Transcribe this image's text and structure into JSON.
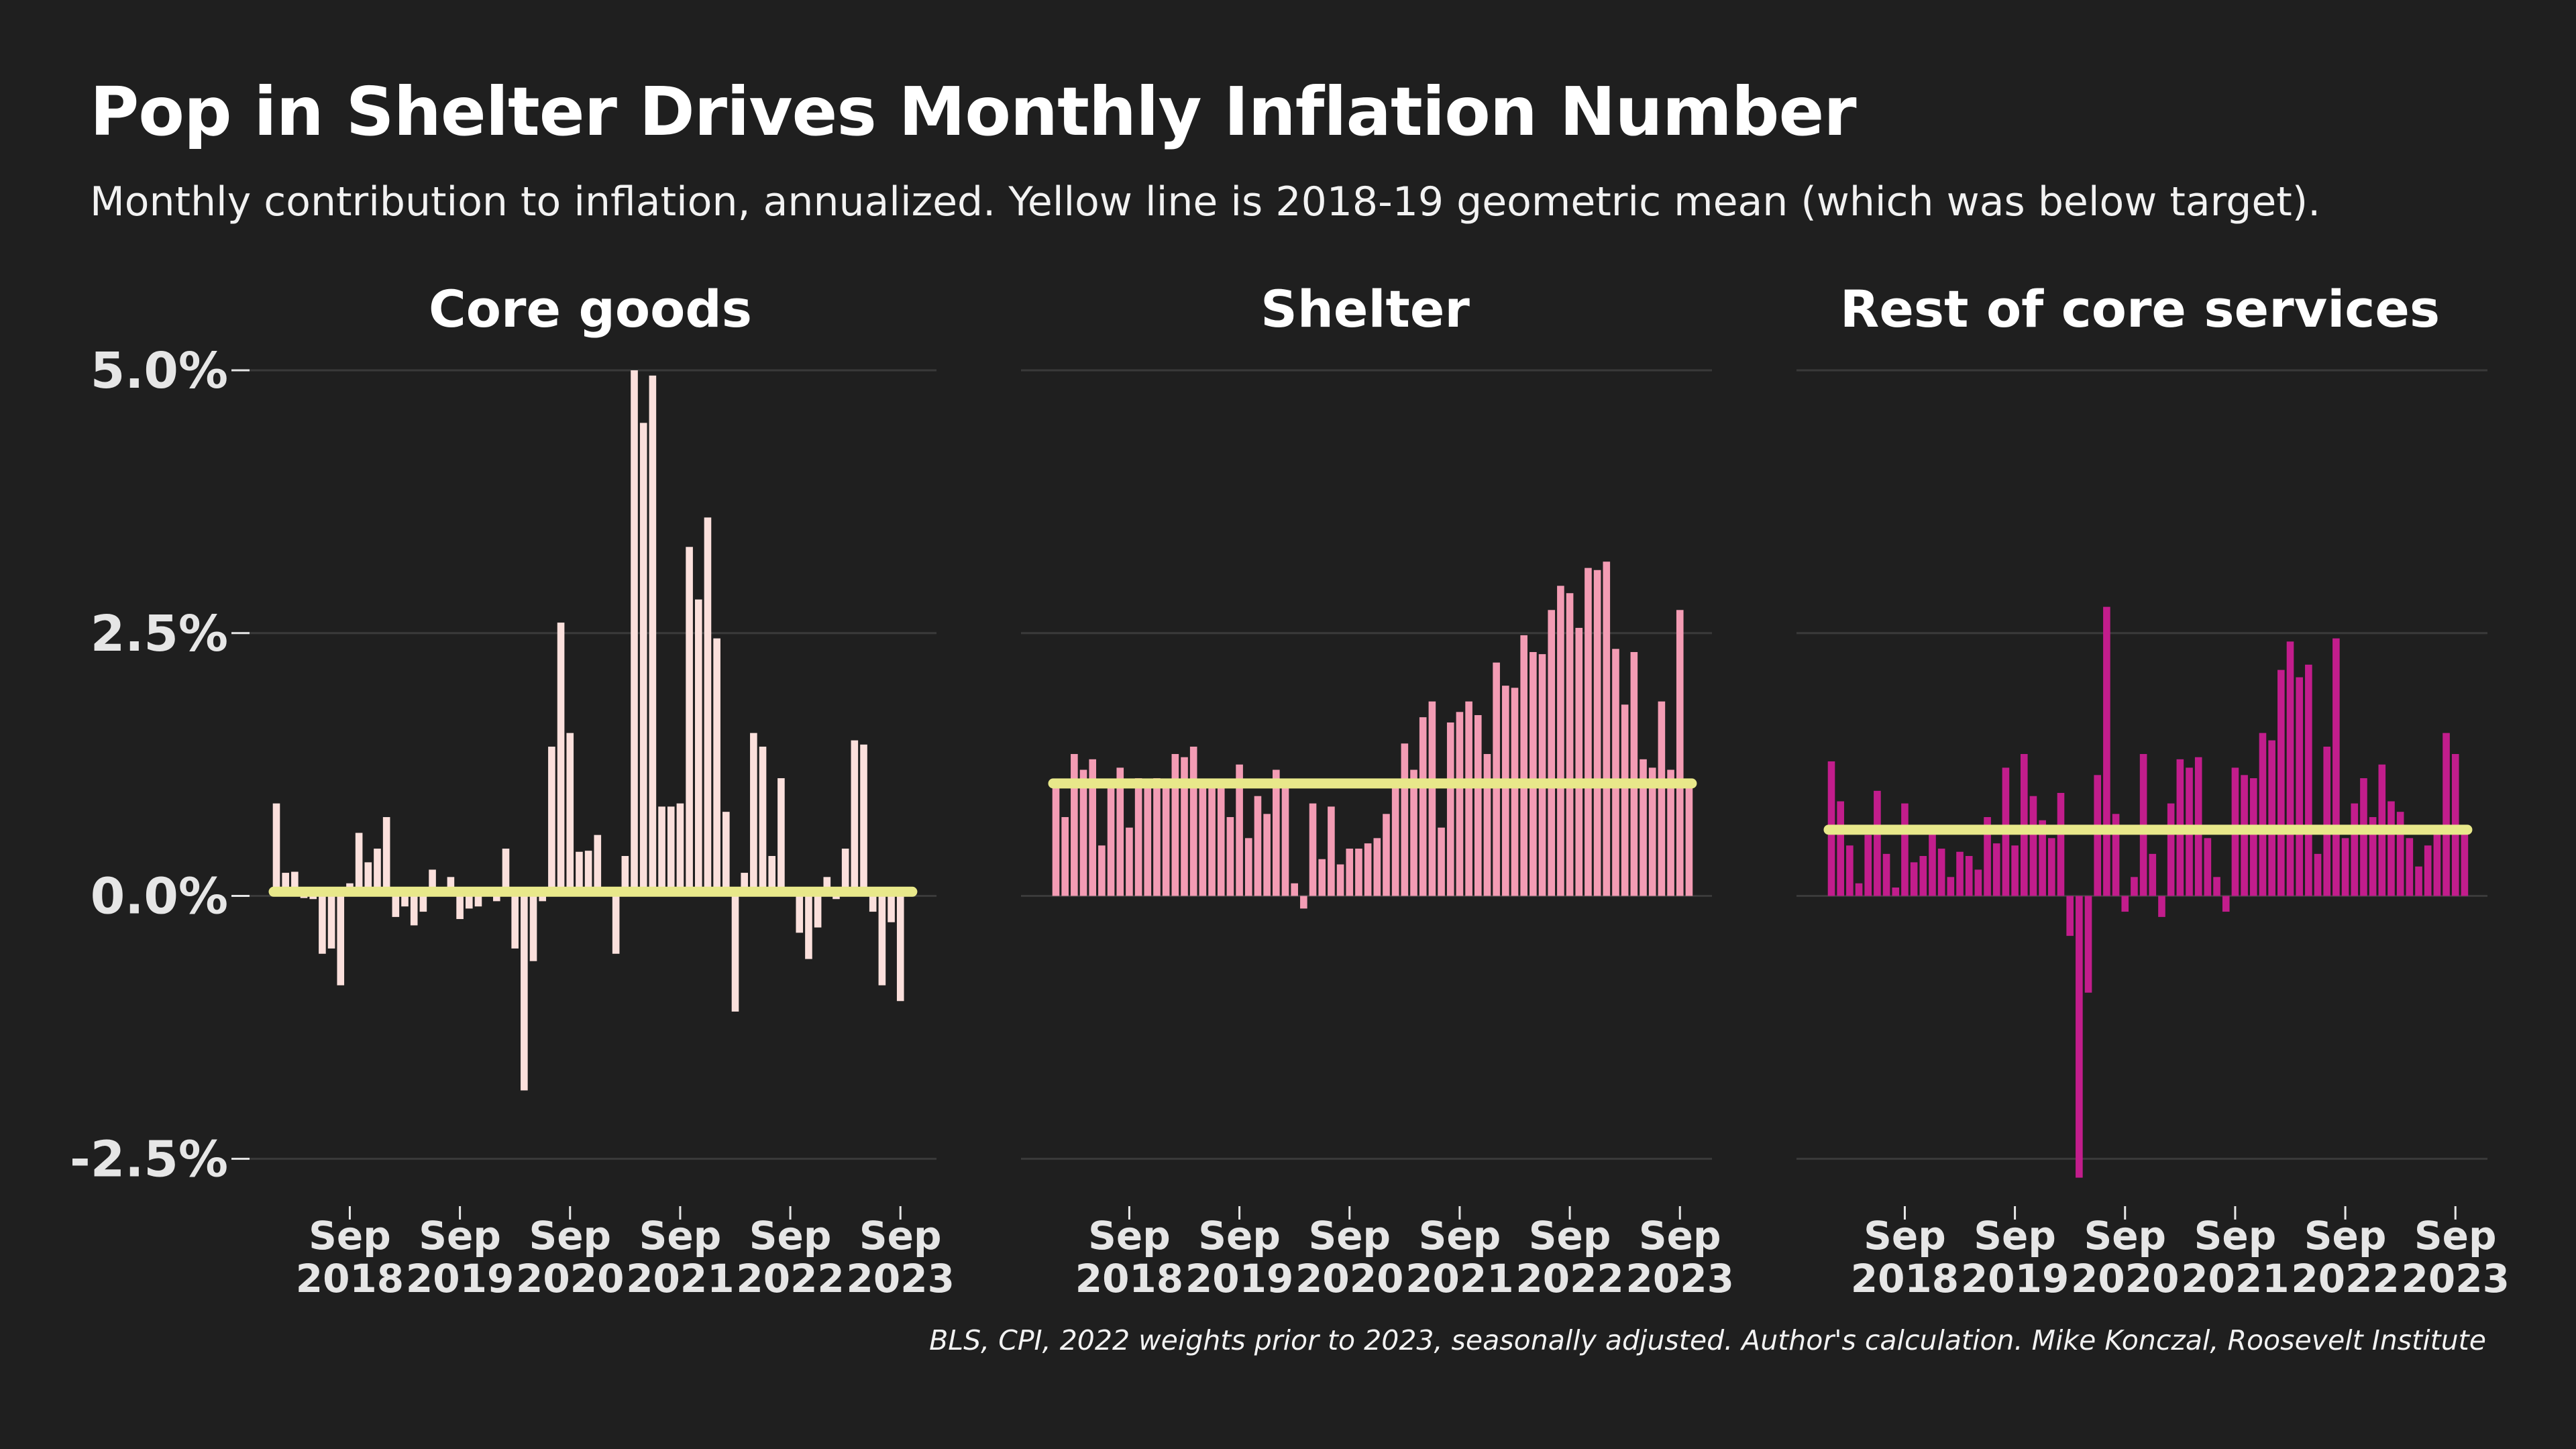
{
  "title": "Pop in Shelter Drives Monthly Inflation Number",
  "subtitle": "Monthly contribution to inflation, annualized. Yellow line is 2018-19 geometric mean (which was below target).",
  "caption": "BLS, CPI, 2022 weights prior to 2023, seasonally adjusted. Author's calculation. Mike Konczal, Roosevelt Institute",
  "colors": {
    "background": "#1f1f1f",
    "grid": "#3a3a3a",
    "mean_line": "#e8e88a",
    "core_goods": "#fbe0dc",
    "shelter": "#f39cb4",
    "rest_services": "#c21d8c"
  },
  "chart_data": [
    {
      "type": "bar",
      "title": "Core goods",
      "x_start": "2018-01",
      "x_end": "2023-10",
      "x_ticks": [
        {
          "date": "2018-09",
          "line1": "Sep",
          "line2": "2018"
        },
        {
          "date": "2019-09",
          "line1": "Sep",
          "line2": "2019"
        },
        {
          "date": "2020-09",
          "line1": "Sep",
          "line2": "2020"
        },
        {
          "date": "2021-09",
          "line1": "Sep",
          "line2": "2021"
        },
        {
          "date": "2022-09",
          "line1": "Sep",
          "line2": "2022"
        },
        {
          "date": "2023-09",
          "line1": "Sep",
          "line2": "2023"
        }
      ],
      "ylim": [
        -2.9,
        5.3
      ],
      "y_ticks": [
        {
          "value": 5.0,
          "label": "5.0%"
        },
        {
          "value": 2.5,
          "label": "2.5%"
        },
        {
          "value": 0.0,
          "label": "0.0%"
        },
        {
          "value": -2.5,
          "label": "-2.5%"
        }
      ],
      "mean": 0.04,
      "values": [
        0.88,
        0.22,
        0.23,
        -0.02,
        -0.03,
        -0.55,
        -0.5,
        -0.85,
        0.12,
        0.6,
        0.32,
        0.45,
        0.75,
        -0.2,
        -0.1,
        -0.28,
        -0.15,
        0.25,
        0.05,
        0.18,
        -0.22,
        -0.12,
        -0.1,
        0.08,
        -0.05,
        0.45,
        -0.5,
        -1.85,
        -0.62,
        -0.05,
        1.42,
        2.6,
        1.55,
        0.42,
        0.43,
        0.58,
        0.02,
        -0.55,
        0.38,
        5.0,
        4.5,
        4.95,
        0.85,
        0.85,
        0.88,
        3.32,
        2.82,
        3.6,
        2.45,
        0.8,
        -1.1,
        0.22,
        1.55,
        1.42,
        0.38,
        1.12,
        0.05,
        -0.35,
        -0.6,
        -0.3,
        0.18,
        -0.03,
        0.45,
        1.48,
        1.44,
        -0.15,
        -0.85,
        -0.25,
        -1.0,
        0.02
      ]
    },
    {
      "type": "bar",
      "title": "Shelter",
      "x_start": "2018-01",
      "x_end": "2023-10",
      "x_ticks": [
        {
          "date": "2018-09",
          "line1": "Sep",
          "line2": "2018"
        },
        {
          "date": "2019-09",
          "line1": "Sep",
          "line2": "2019"
        },
        {
          "date": "2020-09",
          "line1": "Sep",
          "line2": "2020"
        },
        {
          "date": "2021-09",
          "line1": "Sep",
          "line2": "2021"
        },
        {
          "date": "2022-09",
          "line1": "Sep",
          "line2": "2022"
        },
        {
          "date": "2023-09",
          "line1": "Sep",
          "line2": "2023"
        }
      ],
      "ylim": [
        -2.9,
        5.3
      ],
      "mean": 1.07,
      "values": [
        1.05,
        0.75,
        1.35,
        1.2,
        1.3,
        0.48,
        1.05,
        1.22,
        0.65,
        1.12,
        1.1,
        1.12,
        1.08,
        1.35,
        1.32,
        1.42,
        1.05,
        1.03,
        1.1,
        0.75,
        1.25,
        0.55,
        0.95,
        0.78,
        1.2,
        1.1,
        0.12,
        -0.12,
        0.88,
        0.35,
        0.85,
        0.3,
        0.45,
        0.45,
        0.5,
        0.55,
        0.78,
        1.05,
        1.45,
        1.2,
        1.7,
        1.85,
        0.65,
        1.65,
        1.75,
        1.85,
        1.72,
        1.35,
        2.22,
        2.0,
        1.98,
        2.48,
        2.32,
        2.3,
        2.72,
        2.95,
        2.88,
        2.55,
        3.12,
        3.1,
        3.18,
        2.35,
        1.82,
        2.32,
        1.3,
        1.22,
        1.85,
        1.2,
        2.72,
        1.05
      ]
    },
    {
      "type": "bar",
      "title": "Rest of core services",
      "x_start": "2018-01",
      "x_end": "2023-10",
      "x_ticks": [
        {
          "date": "2018-09",
          "line1": "Sep",
          "line2": "2018"
        },
        {
          "date": "2019-09",
          "line1": "Sep",
          "line2": "2019"
        },
        {
          "date": "2020-09",
          "line1": "Sep",
          "line2": "2020"
        },
        {
          "date": "2021-09",
          "line1": "Sep",
          "line2": "2021"
        },
        {
          "date": "2022-09",
          "line1": "Sep",
          "line2": "2022"
        },
        {
          "date": "2023-09",
          "line1": "Sep",
          "line2": "2023"
        }
      ],
      "ylim": [
        -2.9,
        5.3
      ],
      "mean": 0.63,
      "values": [
        1.28,
        0.9,
        0.48,
        0.12,
        0.58,
        1.0,
        0.4,
        0.08,
        0.88,
        0.32,
        0.38,
        0.65,
        0.45,
        0.18,
        0.42,
        0.38,
        0.25,
        0.75,
        0.5,
        1.22,
        0.48,
        1.35,
        0.95,
        0.72,
        0.55,
        0.98,
        -0.38,
        -2.68,
        -0.92,
        1.15,
        2.75,
        0.78,
        -0.15,
        0.18,
        1.35,
        0.4,
        -0.2,
        0.88,
        1.3,
        1.22,
        1.32,
        0.55,
        0.18,
        -0.15,
        1.22,
        1.15,
        1.12,
        1.55,
        1.48,
        2.15,
        2.42,
        2.08,
        2.2,
        0.4,
        1.42,
        2.45,
        0.55,
        0.88,
        1.12,
        0.75,
        1.25,
        0.9,
        0.8,
        0.55,
        0.28,
        0.48,
        0.6,
        1.55,
        1.35,
        0.62
      ]
    }
  ]
}
